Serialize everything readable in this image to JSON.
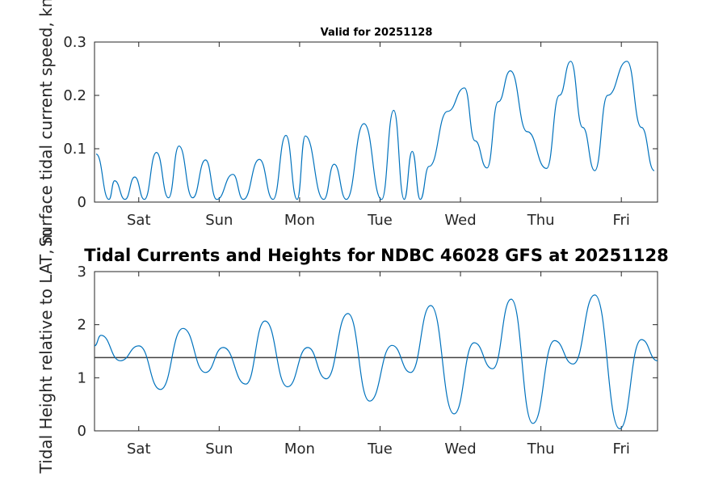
{
  "chart_data": [
    {
      "type": "line",
      "title": "Valid for 20251128",
      "ylabel": "Surface tidal current speed, kn",
      "xlabel": "",
      "ylim": [
        0,
        0.3
      ],
      "yticks": [
        0,
        0.1,
        0.2,
        0.3
      ],
      "yticklabels": [
        "0",
        "0.1",
        "0.2",
        "0.3"
      ],
      "xlim": [
        0,
        7.0
      ],
      "xticks": [
        0.55,
        1.55,
        2.55,
        3.55,
        4.55,
        5.55,
        6.55
      ],
      "xticklabels": [
        "Sat",
        "Sun",
        "Mon",
        "Tue",
        "Wed",
        "Thu",
        "Fri"
      ],
      "color": "#0072bd",
      "series": [
        {
          "x": [
            0.02,
            0.18,
            0.25,
            0.38,
            0.5,
            0.62,
            0.77,
            0.92,
            1.05,
            1.22,
            1.38,
            1.52,
            1.72,
            1.85,
            2.05,
            2.22,
            2.38,
            2.52,
            2.62,
            2.85,
            2.98,
            3.13,
            3.35,
            3.57,
            3.72,
            3.85,
            3.95,
            4.05,
            4.16,
            4.39,
            4.6,
            4.73,
            4.88,
            5.02,
            5.17,
            5.38,
            5.62,
            5.78,
            5.92,
            6.07,
            6.22,
            6.38,
            6.62,
            6.8,
            6.96
          ],
          "y": [
            0.09,
            0.005,
            0.04,
            0.005,
            0.047,
            0.005,
            0.093,
            0.008,
            0.105,
            0.008,
            0.079,
            0.005,
            0.052,
            0.005,
            0.08,
            0.005,
            0.125,
            0.005,
            0.124,
            0.005,
            0.071,
            0.005,
            0.147,
            0.005,
            0.172,
            0.005,
            0.095,
            0.005,
            0.067,
            0.17,
            0.214,
            0.115,
            0.064,
            0.188,
            0.246,
            0.132,
            0.063,
            0.2,
            0.264,
            0.14,
            0.059,
            0.2,
            0.264,
            0.14,
            0.059
          ]
        }
      ]
    },
    {
      "type": "line",
      "title": "Tidal Currents and Heights for NDBC 46028 GFS at 20251128",
      "ylabel": "Tidal Height relative to LAT, m",
      "xlabel": "",
      "ylim": [
        0,
        3
      ],
      "yticks": [
        0,
        1,
        2,
        3
      ],
      "yticklabels": [
        "0",
        "1",
        "2",
        "3"
      ],
      "xlim": [
        0,
        7.0
      ],
      "xticks": [
        0.55,
        1.55,
        2.55,
        3.55,
        4.55,
        5.55,
        6.55
      ],
      "xticklabels": [
        "Sat",
        "Sun",
        "Mon",
        "Tue",
        "Wed",
        "Thu",
        "Fri"
      ],
      "reference_line": 1.38,
      "color": "#0072bd",
      "series": [
        {
          "x": [
            0.0,
            0.08,
            0.32,
            0.55,
            0.82,
            1.1,
            1.38,
            1.6,
            1.88,
            2.12,
            2.4,
            2.65,
            2.88,
            3.15,
            3.42,
            3.7,
            3.93,
            4.18,
            4.47,
            4.72,
            4.95,
            5.18,
            5.45,
            5.72,
            5.95,
            6.22,
            6.53,
            6.8,
            7.0
          ],
          "y": [
            1.6,
            1.8,
            1.32,
            1.6,
            0.78,
            1.93,
            1.1,
            1.57,
            0.88,
            2.07,
            0.83,
            1.57,
            0.98,
            2.21,
            0.56,
            1.61,
            1.1,
            2.36,
            0.32,
            1.66,
            1.17,
            2.48,
            0.14,
            1.7,
            1.26,
            2.56,
            0.04,
            1.72,
            1.32
          ]
        }
      ]
    }
  ]
}
